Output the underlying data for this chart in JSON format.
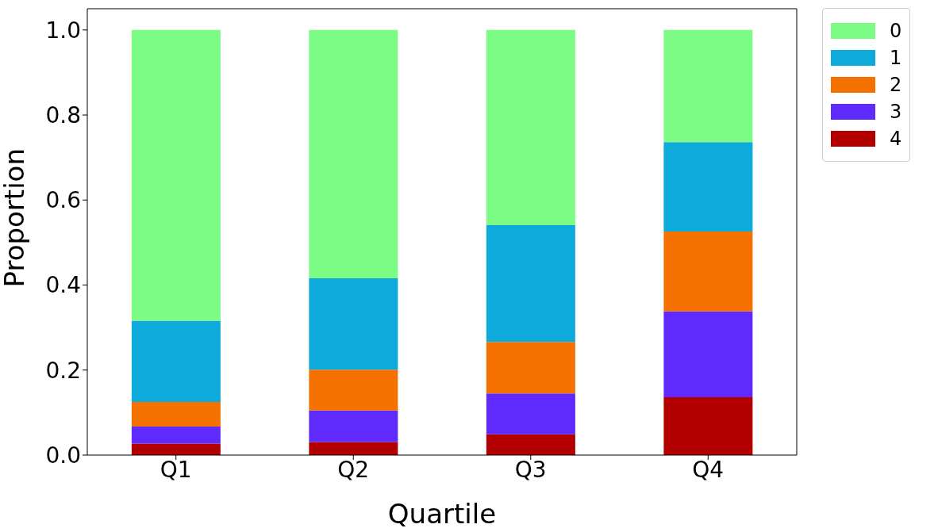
{
  "chart_data": {
    "type": "bar",
    "stacked": true,
    "xlabel": "Quartile",
    "ylabel": "Proportion",
    "categories": [
      "Q1",
      "Q2",
      "Q3",
      "Q4"
    ],
    "series": [
      {
        "name": "4",
        "color": "#b20000",
        "values": [
          0.027,
          0.031,
          0.049,
          0.136
        ]
      },
      {
        "name": "3",
        "color": "#5f2bfc",
        "values": [
          0.04,
          0.074,
          0.096,
          0.202
        ]
      },
      {
        "name": "2",
        "color": "#f57100",
        "values": [
          0.058,
          0.096,
          0.121,
          0.188
        ]
      },
      {
        "name": "1",
        "color": "#0eaadb",
        "values": [
          0.191,
          0.215,
          0.275,
          0.21
        ]
      },
      {
        "name": "0",
        "color": "#7cfc84",
        "values": [
          0.684,
          0.584,
          0.459,
          0.264
        ]
      }
    ],
    "ylim": [
      0,
      1.05
    ],
    "yticks": [
      {
        "value": 0,
        "label": "0.0"
      },
      {
        "value": 0.2,
        "label": "0.2"
      },
      {
        "value": 0.4,
        "label": "0.4"
      },
      {
        "value": 0.6,
        "label": "0.6"
      },
      {
        "value": 0.8,
        "label": "0.8"
      },
      {
        "value": 1,
        "label": "1.0"
      }
    ],
    "grid": false,
    "legend": "top right"
  }
}
